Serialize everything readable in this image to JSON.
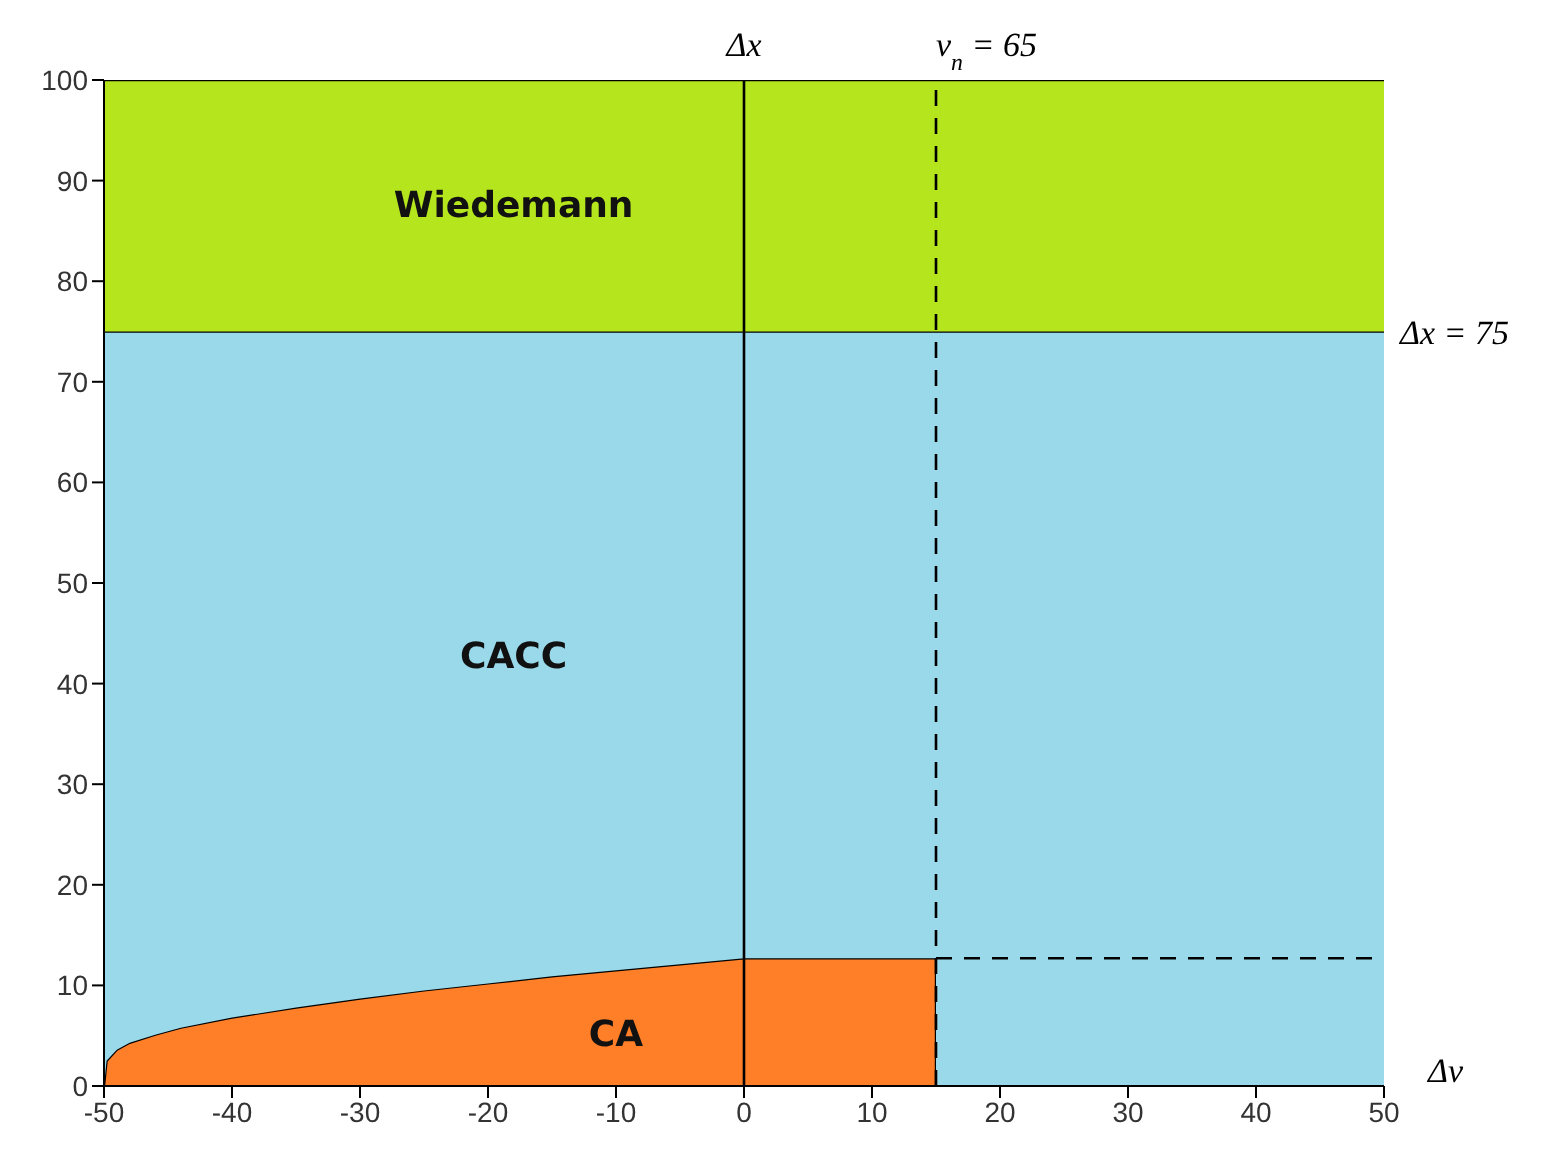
{
  "chart_data": {
    "type": "area",
    "stacked": true,
    "xlabel": "Δv",
    "x": [
      -50,
      -49.8,
      -49,
      -48,
      -46,
      -44,
      -40,
      -35,
      -30,
      -25,
      -20,
      -15,
      -10,
      -5,
      0,
      15,
      15,
      50
    ],
    "series": [
      {
        "name": "CA",
        "color": "#fe7f27",
        "values": [
          0,
          2.5,
          3.6,
          4.3,
          5.1,
          5.8,
          6.8,
          7.8,
          8.7,
          9.5,
          10.2,
          10.9,
          11.5,
          12.1,
          12.7,
          12.7,
          0,
          0
        ]
      },
      {
        "name": "CACC",
        "color": "#99d9ea",
        "values": [
          75,
          72.5,
          71.4,
          70.7,
          69.9,
          69.2,
          68.2,
          67.2,
          66.3,
          65.5,
          64.8,
          64.1,
          63.5,
          62.9,
          62.3,
          62.3,
          75,
          75
        ]
      },
      {
        "name": "Wiedemann",
        "color": "#b5e61d",
        "values": [
          25,
          25,
          25,
          25,
          25,
          25,
          25,
          25,
          25,
          25,
          25,
          25,
          25,
          25,
          25,
          25,
          25,
          25
        ]
      },
      {
        "type": "line",
        "x": [
          15,
          50
        ],
        "values": [
          12.7,
          12.7
        ],
        "color": "#000000",
        "line_style": "dashed"
      }
    ],
    "xlim": [
      -50,
      50
    ],
    "xticks": [
      -50,
      -40,
      -30,
      -20,
      -10,
      0,
      10,
      20,
      30,
      40,
      50
    ],
    "ylim": [
      0,
      100
    ],
    "yticks": [
      0,
      10,
      20,
      30,
      40,
      50,
      60,
      70,
      80,
      90,
      100
    ],
    "ref_lines": [
      {
        "axis": "x",
        "value": 0,
        "label": "Δx",
        "color": "#000000",
        "line_style": "solid"
      },
      {
        "axis": "x",
        "value": 15,
        "color": "#000000",
        "line_style": "dashed"
      }
    ],
    "annotations": [
      "v$_{n}$ = 65",
      "Δx = 75"
    ],
    "marker": "none"
  }
}
